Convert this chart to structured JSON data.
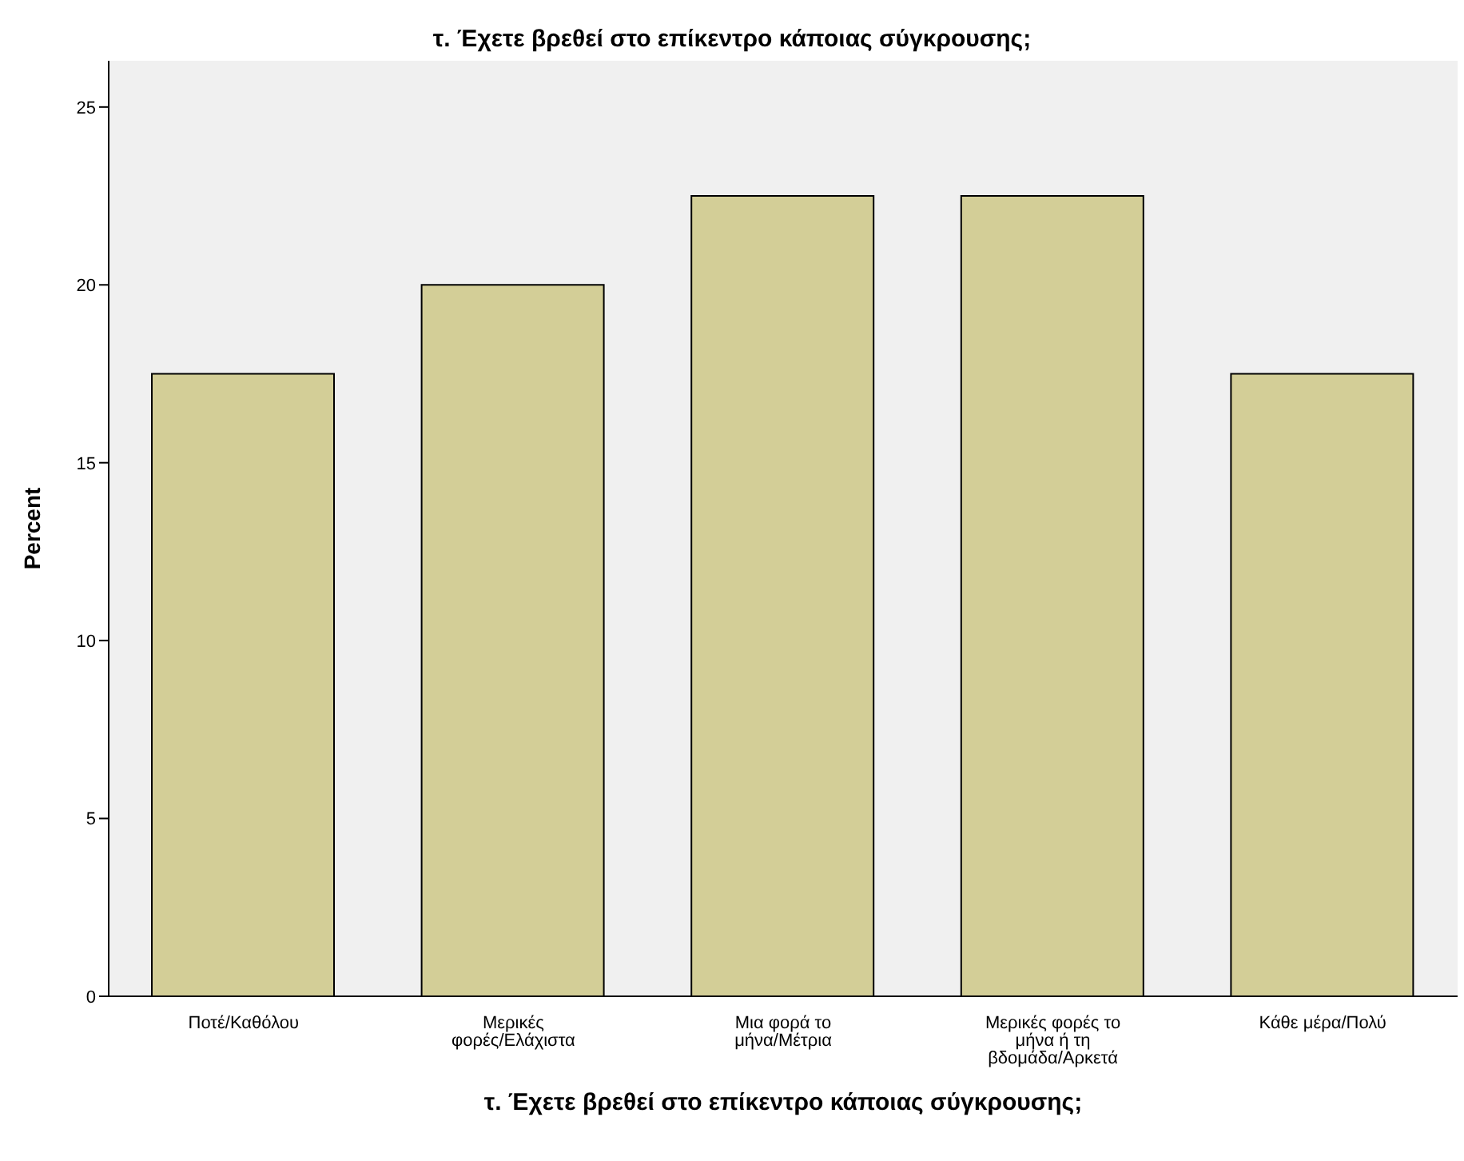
{
  "chart_data": {
    "type": "bar",
    "title": "τ. Έχετε βρεθεί στο επίκεντρο κάποιας σύγκρουσης;",
    "xlabel": "τ. Έχετε βρεθεί στο επίκεντρο κάποιας σύγκρουσης;",
    "ylabel": "Percent",
    "categories": [
      "Ποτέ/Καθόλου",
      "Μερικές φορές/Ελάχιστα",
      "Μια φορά το μήνα/Μέτρια",
      "Μερικές φορές το μήνα ή τη βδομάδα/Αρκετά",
      "Κάθε μέρα/Πολύ"
    ],
    "values": [
      17.5,
      20,
      22.5,
      22.5,
      17.5
    ],
    "color": "#d3ce97",
    "ylim": [
      0,
      26.3
    ],
    "yticks": [
      0,
      5,
      10,
      15,
      20,
      25
    ]
  }
}
